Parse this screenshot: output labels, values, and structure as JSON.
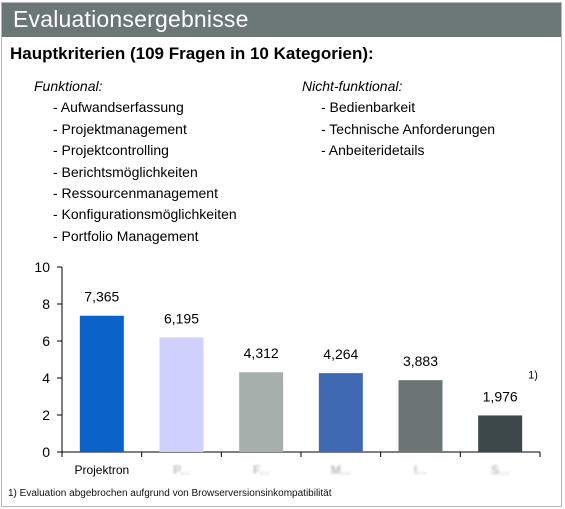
{
  "header": {
    "title": "Evaluationsergebnisse"
  },
  "heading": "Hauptkriterien (109 Fragen in 10 Kategorien):",
  "functional": {
    "caption": "Funktional:",
    "items": [
      "- Aufwandserfassung",
      "- Projektmanagement",
      "- Projektcontrolling",
      "- Berichtsmöglichkeiten",
      "- Ressourcenmanagement",
      "- Konfigurationsmöglichkeiten",
      "- Portfolio Management"
    ]
  },
  "nonfunctional": {
    "caption": "Nicht-funktional:",
    "items": [
      "- Bedienbarkeit",
      "- Technische Anforderungen",
      "- Anbeiteridetails"
    ]
  },
  "chart_data": {
    "type": "bar",
    "categories": [
      "Projektron",
      "P...",
      "F...",
      "M...",
      "I...",
      "S..."
    ],
    "values": [
      7.365,
      6.195,
      4.312,
      4.264,
      3.883,
      1.976
    ],
    "value_labels": [
      "7,365",
      "6,195",
      "4,312",
      "4,264",
      "3,883",
      "1,976"
    ],
    "colors": [
      "#0b62c9",
      "#cfd0fb",
      "#a7afad",
      "#4069b3",
      "#6a7574",
      "#3c4849"
    ],
    "blurred_categories": [
      false,
      true,
      true,
      true,
      true,
      true
    ],
    "ylim": [
      0,
      10
    ],
    "yticks": [
      0,
      2,
      4,
      6,
      8,
      10
    ],
    "ytick_labels": [
      "0",
      "2",
      "4",
      "6",
      "8",
      "10"
    ],
    "grid": false,
    "annotation": {
      "category_index": 5,
      "text": "1)"
    }
  },
  "footnote": "1) Evaluation abgebrochen aufgrund von Browserversionsinkompatibilität"
}
